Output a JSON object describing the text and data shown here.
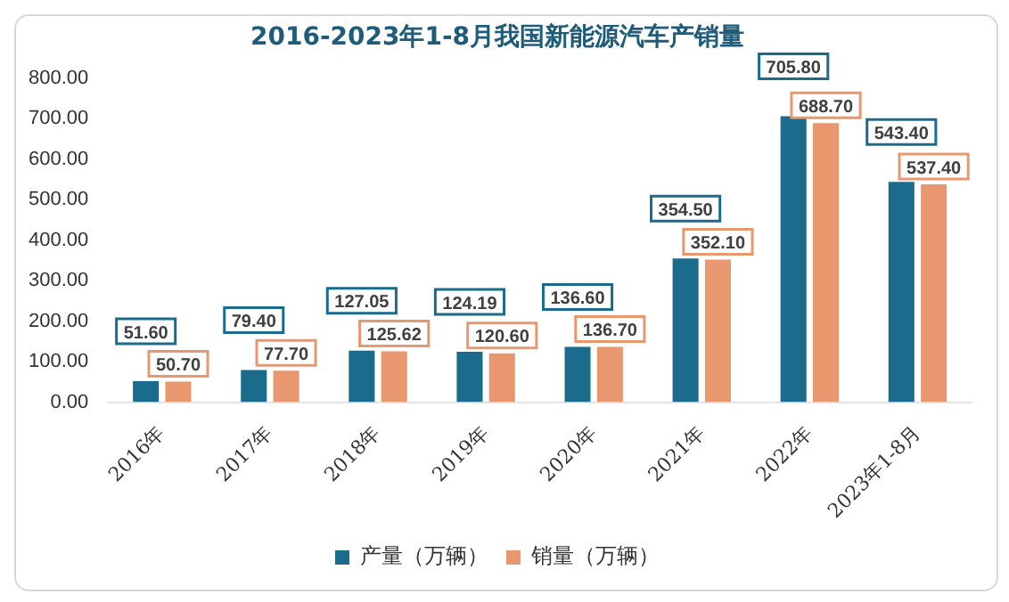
{
  "chart_data": {
    "type": "bar",
    "title": "2016-2023年1-8月我国新能源汽车产销量",
    "categories": [
      "2016年",
      "2017年",
      "2018年",
      "2019年",
      "2020年",
      "2021年",
      "2022年",
      "2023年1-8月"
    ],
    "series": [
      {
        "name": "产量（万辆）",
        "color": "#1b6b8c",
        "values": [
          51.6,
          79.4,
          127.05,
          124.19,
          136.6,
          354.5,
          705.8,
          543.4
        ],
        "value_labels": [
          "51.60",
          "79.40",
          "127.05",
          "124.19",
          "136.60",
          "354.50",
          "705.80",
          "543.40"
        ]
      },
      {
        "name": "销量（万辆）",
        "color": "#e9976f",
        "values": [
          50.7,
          77.7,
          125.62,
          120.6,
          136.7,
          352.1,
          688.7,
          537.4
        ],
        "value_labels": [
          "50.70",
          "77.70",
          "125.62",
          "120.60",
          "136.70",
          "352.10",
          "688.70",
          "537.40"
        ]
      }
    ],
    "ylim": [
      0,
      800
    ],
    "yticks": [
      {
        "value": 0,
        "label": "0.00"
      },
      {
        "value": 100,
        "label": "100.00"
      },
      {
        "value": 200,
        "label": "200.00"
      },
      {
        "value": 300,
        "label": "300.00"
      },
      {
        "value": 400,
        "label": "400.00"
      },
      {
        "value": 500,
        "label": "500.00"
      },
      {
        "value": 600,
        "label": "600.00"
      },
      {
        "value": 700,
        "label": "700.00"
      },
      {
        "value": 800,
        "label": "800.00"
      }
    ],
    "grid": false,
    "legend": "bottom"
  }
}
